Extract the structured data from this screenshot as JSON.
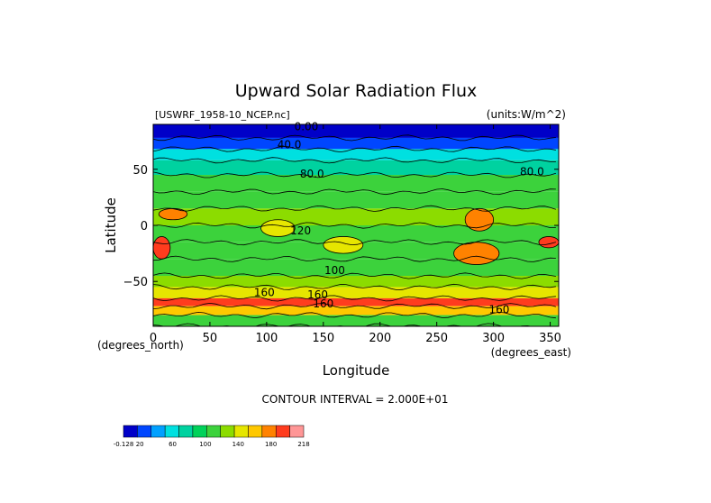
{
  "chart_data": {
    "type": "heatmap",
    "title": "Upward Solar Radiation Flux",
    "file_label": "[USWRF_1958-10_NCEP.nc]",
    "units_label": "(units:W/m^2)",
    "xlabel": "Longitude",
    "ylabel": "Latitude",
    "x_unit_note": "(degrees_east)",
    "y_unit_note": "(degrees_north)",
    "xlim": [
      0,
      357.5
    ],
    "ylim": [
      -90,
      90
    ],
    "x_ticks": [
      {
        "value": 0,
        "label": "0"
      },
      {
        "value": 50,
        "label": "50"
      },
      {
        "value": 100,
        "label": "100"
      },
      {
        "value": 150,
        "label": "150"
      },
      {
        "value": 200,
        "label": "200"
      },
      {
        "value": 250,
        "label": "250"
      },
      {
        "value": 300,
        "label": "300"
      },
      {
        "value": 350,
        "label": "350"
      }
    ],
    "y_ticks": [
      {
        "value": 50,
        "label": "50"
      },
      {
        "value": 0,
        "label": "0"
      },
      {
        "value": -50,
        "label": "−50"
      }
    ],
    "contour_interval_text": "CONTOUR INTERVAL = 2.000E+01",
    "colorbar": {
      "colors": [
        "#0000c8",
        "#0046ff",
        "#00a0ff",
        "#00e0e0",
        "#00d2a0",
        "#00d25a",
        "#3cd23c",
        "#8cdc00",
        "#e6e600",
        "#ffc800",
        "#ff8200",
        "#ff3c1e",
        "#ff9696"
      ],
      "tick_labels": [
        "-0.128",
        "20",
        "",
        "60",
        "",
        "100",
        "",
        "140",
        "",
        "180",
        "",
        "218"
      ]
    },
    "latitude_bands": [
      {
        "lat": [
          78,
          90
        ],
        "approx_value": 0
      },
      {
        "lat": [
          68,
          78
        ],
        "approx_value": 30
      },
      {
        "lat": [
          58,
          68
        ],
        "approx_value": 60
      },
      {
        "lat": [
          45,
          58
        ],
        "approx_value": 80
      },
      {
        "lat": [
          30,
          45
        ],
        "approx_value": 110
      },
      {
        "lat": [
          15,
          30
        ],
        "approx_value": 120
      },
      {
        "lat": [
          0,
          15
        ],
        "approx_value": 130
      },
      {
        "lat": [
          -15,
          0
        ],
        "approx_value": 120
      },
      {
        "lat": [
          -30,
          -15
        ],
        "approx_value": 110
      },
      {
        "lat": [
          -45,
          -30
        ],
        "approx_value": 110
      },
      {
        "lat": [
          -55,
          -45
        ],
        "approx_value": 130
      },
      {
        "lat": [
          -65,
          -55
        ],
        "approx_value": 150
      },
      {
        "lat": [
          -72,
          -65
        ],
        "approx_value": 200
      },
      {
        "lat": [
          -80,
          -72
        ],
        "approx_value": 175
      },
      {
        "lat": [
          -90,
          -80
        ],
        "approx_value": 120
      }
    ],
    "high_regions": [
      {
        "lon": [
          5,
          30
        ],
        "lat": [
          5,
          15
        ],
        "approx_value": 180
      },
      {
        "lon": [
          0,
          15
        ],
        "lat": [
          -30,
          -10
        ],
        "approx_value": 200
      },
      {
        "lon": [
          95,
          125
        ],
        "lat": [
          -10,
          5
        ],
        "approx_value": 160
      },
      {
        "lon": [
          150,
          185
        ],
        "lat": [
          -25,
          -10
        ],
        "approx_value": 150
      },
      {
        "lon": [
          265,
          305
        ],
        "lat": [
          -35,
          -15
        ],
        "approx_value": 180
      },
      {
        "lon": [
          275,
          300
        ],
        "lat": [
          -5,
          15
        ],
        "approx_value": 190
      },
      {
        "lon": [
          340,
          357.5
        ],
        "lat": [
          -20,
          -10
        ],
        "approx_value": 210
      }
    ],
    "contour_labels": [
      {
        "text": "0.00",
        "lon": 135,
        "lat": 88
      },
      {
        "text": "40.0",
        "lon": 120,
        "lat": 72
      },
      {
        "text": "80.0",
        "lon": 140,
        "lat": 46
      },
      {
        "text": "80.0",
        "lon": 334,
        "lat": 48
      },
      {
        "text": "120",
        "lon": 130,
        "lat": -5
      },
      {
        "text": "100",
        "lon": 160,
        "lat": -40
      },
      {
        "text": "160",
        "lon": 98,
        "lat": -60
      },
      {
        "text": "160",
        "lon": 145,
        "lat": -62
      },
      {
        "text": "160",
        "lon": 150,
        "lat": -70
      },
      {
        "text": "160",
        "lon": 305,
        "lat": -75
      }
    ]
  }
}
